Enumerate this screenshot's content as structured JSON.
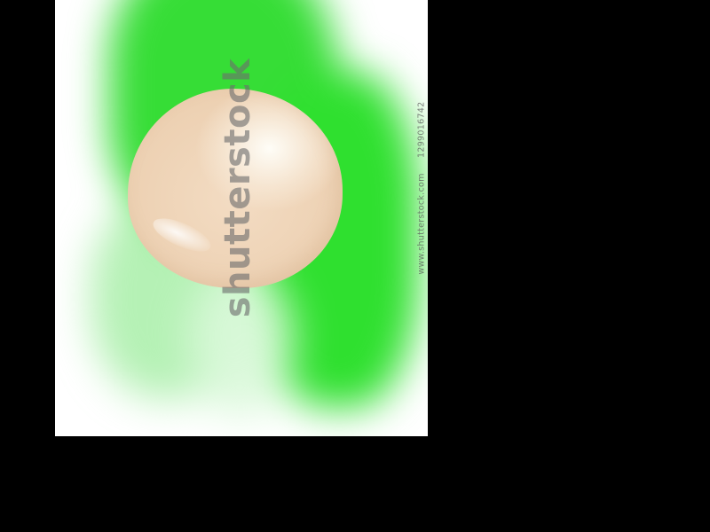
{
  "image": {
    "description_colors": {
      "background_outer": "#000000",
      "photo_background": "#ffffff",
      "green_primary": "#36dd36",
      "green_soft": "#8de98d",
      "egg_base": "#f3dcc3",
      "egg_highlight": "#fffffa"
    },
    "watermark": {
      "logo_text": "shutterstock",
      "url_text": "www.shutterstock.com",
      "image_number": "1299016742"
    }
  }
}
